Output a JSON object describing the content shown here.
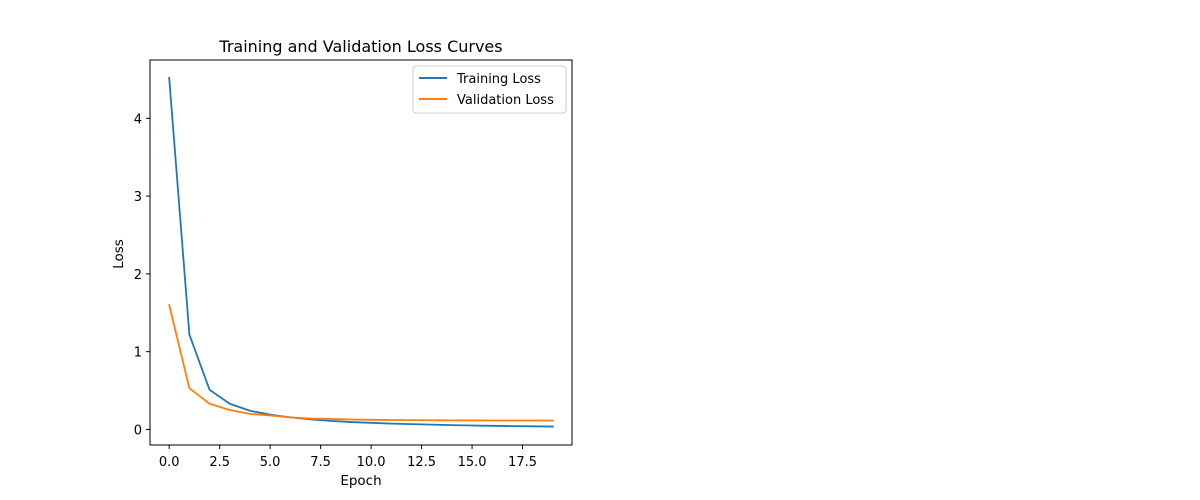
{
  "chart_data": {
    "type": "line",
    "title": "Training and Validation Loss Curves",
    "xlabel": "Epoch",
    "ylabel": "Loss",
    "xlim": [
      -0.95,
      19.95
    ],
    "ylim": [
      -0.2,
      4.75
    ],
    "x_ticks": [
      0,
      2.5,
      5,
      7.5,
      10,
      12.5,
      15,
      17.5
    ],
    "x_tick_labels": [
      "0.0",
      "2.5",
      "5.0",
      "7.5",
      "10.0",
      "12.5",
      "15.0",
      "17.5"
    ],
    "y_ticks": [
      0,
      1,
      2,
      3,
      4
    ],
    "y_tick_labels": [
      "0",
      "1",
      "2",
      "3",
      "4"
    ],
    "grid": false,
    "legend_position": "top-right",
    "x": [
      0,
      1,
      2,
      3,
      4,
      5,
      6,
      7,
      8,
      9,
      10,
      11,
      12,
      13,
      14,
      15,
      16,
      17,
      18,
      19
    ],
    "series": [
      {
        "name": "Training Loss",
        "color": "#1f77b4",
        "values": [
          4.52,
          1.22,
          0.51,
          0.33,
          0.24,
          0.19,
          0.155,
          0.13,
          0.11,
          0.095,
          0.085,
          0.075,
          0.068,
          0.062,
          0.056,
          0.051,
          0.047,
          0.043,
          0.04,
          0.037
        ]
      },
      {
        "name": "Validation Loss",
        "color": "#ff7f0e",
        "values": [
          1.6,
          0.53,
          0.33,
          0.25,
          0.2,
          0.18,
          0.155,
          0.14,
          0.135,
          0.128,
          0.124,
          0.121,
          0.12,
          0.118,
          0.117,
          0.116,
          0.115,
          0.115,
          0.115,
          0.114
        ]
      }
    ]
  }
}
